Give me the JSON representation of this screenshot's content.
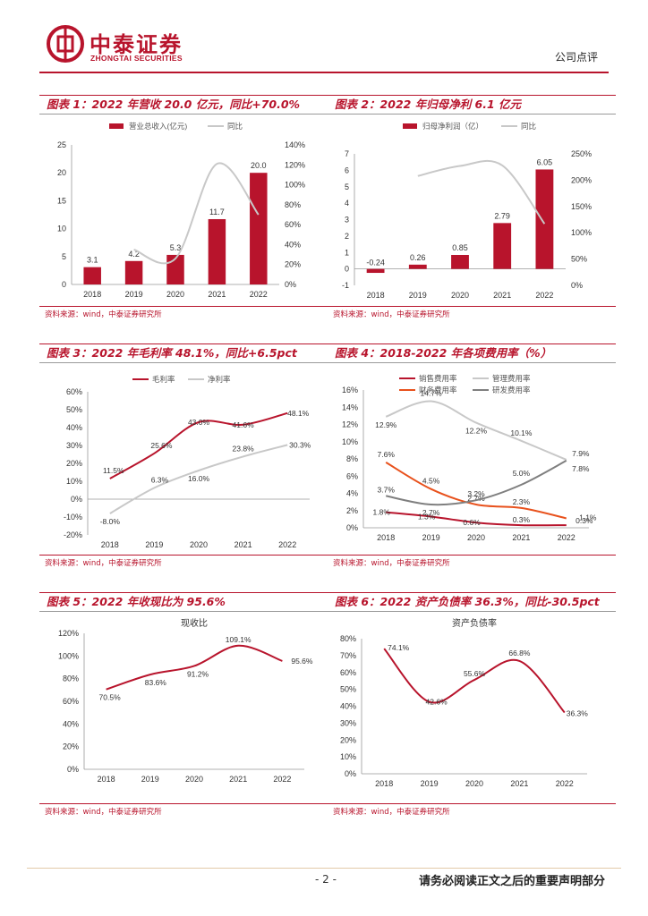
{
  "header": {
    "company_cn": "中泰证券",
    "company_en": "ZHONGTAI SECURITIES",
    "report_type": "公司点评",
    "brand_color": "#b8142c"
  },
  "source_text": "资料来源：wind，中泰证券研究所",
  "charts": {
    "c1": {
      "title": "图表 1：2022 年营收 20.0 亿元，同比+70.0%"
    },
    "c2": {
      "title": "图表 2：2022 年归母净利 6.1 亿元"
    },
    "c3": {
      "title": "图表 3：2022 年毛利率 48.1%，同比+6.5pct"
    },
    "c4": {
      "title": "图表 4：2018-2022 年各项费用率（%）"
    },
    "c5": {
      "title": "图表 5：2022 年收现比为 95.6%"
    },
    "c6": {
      "title": "图表 6：2022 资产负债率 36.3%，同比-30.5pct"
    }
  },
  "chart_data": [
    {
      "id": "c1",
      "type": "bar+line",
      "categories": [
        "2018",
        "2019",
        "2020",
        "2021",
        "2022"
      ],
      "series": [
        {
          "name": "营业总收入(亿元)",
          "type": "bar",
          "axis": "left",
          "values": [
            3.1,
            4.2,
            5.3,
            11.7,
            20.0
          ],
          "labels": [
            "3.1",
            "4.2",
            "5.3",
            "11.7",
            "20.0"
          ]
        },
        {
          "name": "同比",
          "type": "line",
          "axis": "right",
          "values": [
            null,
            35,
            26,
            121,
            70
          ]
        }
      ],
      "ylim": [
        0,
        25
      ],
      "yticks": [
        "0",
        "5",
        "10",
        "15",
        "20",
        "25"
      ],
      "y2lim": [
        0,
        140
      ],
      "y2ticks": [
        "0%",
        "20%",
        "40%",
        "60%",
        "80%",
        "100%",
        "120%",
        "140%"
      ]
    },
    {
      "id": "c2",
      "type": "bar+line",
      "categories": [
        "2018",
        "2019",
        "2020",
        "2021",
        "2022"
      ],
      "series": [
        {
          "name": "归母净利润（亿）",
          "type": "bar",
          "axis": "left",
          "values": [
            -0.24,
            0.26,
            0.85,
            2.79,
            6.05
          ],
          "labels": [
            "-0.24",
            "0.26",
            "0.85",
            "2.79",
            "6.05"
          ]
        },
        {
          "name": "同比",
          "type": "line",
          "axis": "right",
          "values": [
            null,
            208,
            227,
            228,
            117
          ]
        }
      ],
      "ylim": [
        -1,
        7
      ],
      "yticks": [
        "-1",
        "0",
        "1",
        "2",
        "3",
        "4",
        "5",
        "6",
        "7"
      ],
      "y2lim": [
        0,
        250
      ],
      "y2ticks": [
        "0%",
        "50%",
        "100%",
        "150%",
        "200%",
        "250%"
      ]
    },
    {
      "id": "c3",
      "type": "line",
      "categories": [
        "2018",
        "2019",
        "2020",
        "2021",
        "2022"
      ],
      "series": [
        {
          "name": "毛利率",
          "values": [
            11.5,
            25.6,
            43.0,
            41.6,
            48.1
          ],
          "labels": [
            "11.5%",
            "25.6%",
            "43.0%",
            "41.6%",
            "48.1%"
          ]
        },
        {
          "name": "净利率",
          "values": [
            -8.0,
            6.3,
            16.0,
            23.8,
            30.3
          ],
          "labels": [
            "-8.0%",
            "6.3%",
            "16.0%",
            "23.8%",
            "30.3%"
          ]
        }
      ],
      "ylim": [
        -20,
        60
      ],
      "yticks": [
        "-20%",
        "-10%",
        "0%",
        "10%",
        "20%",
        "30%",
        "40%",
        "50%",
        "60%"
      ]
    },
    {
      "id": "c4",
      "type": "line",
      "categories": [
        "2018",
        "2019",
        "2020",
        "2021",
        "2022"
      ],
      "series": [
        {
          "name": "销售费用率",
          "values": [
            1.8,
            1.3,
            0.6,
            0.3,
            0.3
          ],
          "labels": [
            "1.8%",
            "1.3%",
            "0.6%",
            "0.3%",
            "0.3%"
          ]
        },
        {
          "name": "管理费用率",
          "values": [
            12.9,
            14.7,
            12.2,
            10.1,
            7.9
          ],
          "labels": [
            "12.9%",
            "14.7%",
            "12.2%",
            "10.1%",
            "7.9%"
          ]
        },
        {
          "name": "财务费用率",
          "values": [
            7.6,
            4.5,
            2.7,
            2.3,
            1.1
          ],
          "labels": [
            "7.6%",
            "4.5%",
            "2.7%",
            "2.3%",
            "1.1%"
          ]
        },
        {
          "name": "研发费用率",
          "values": [
            3.7,
            2.7,
            3.2,
            5.0,
            7.8
          ],
          "labels": [
            "3.7%",
            "2.7%",
            "3.2%",
            "5.0%",
            "7.8%"
          ]
        }
      ],
      "ylim": [
        0,
        16
      ],
      "yticks": [
        "0%",
        "2%",
        "4%",
        "6%",
        "8%",
        "10%",
        "12%",
        "14%",
        "16%"
      ]
    },
    {
      "id": "c5",
      "type": "line",
      "title": "现收比",
      "categories": [
        "2018",
        "2019",
        "2020",
        "2021",
        "2022"
      ],
      "series": [
        {
          "name": "现收比",
          "values": [
            70.5,
            83.6,
            91.2,
            109.1,
            95.6
          ],
          "labels": [
            "70.5%",
            "83.6%",
            "91.2%",
            "109.1%",
            "95.6%"
          ]
        }
      ],
      "ylim": [
        0,
        120
      ],
      "yticks": [
        "0%",
        "20%",
        "40%",
        "60%",
        "80%",
        "100%",
        "120%"
      ]
    },
    {
      "id": "c6",
      "type": "line",
      "title": "资产负债率",
      "categories": [
        "2018",
        "2019",
        "2020",
        "2021",
        "2022"
      ],
      "series": [
        {
          "name": "资产负债率",
          "values": [
            74.1,
            42.6,
            55.6,
            66.8,
            36.3
          ],
          "labels": [
            "74.1%",
            "42.6%",
            "55.6%",
            "66.8%",
            "36.3%"
          ]
        }
      ],
      "ylim": [
        0,
        80
      ],
      "yticks": [
        "0%",
        "10%",
        "20%",
        "30%",
        "40%",
        "50%",
        "60%",
        "70%",
        "80%"
      ]
    }
  ],
  "footer": {
    "page": "- 2 -",
    "note": "请务必阅读正文之后的重要声明部分"
  }
}
